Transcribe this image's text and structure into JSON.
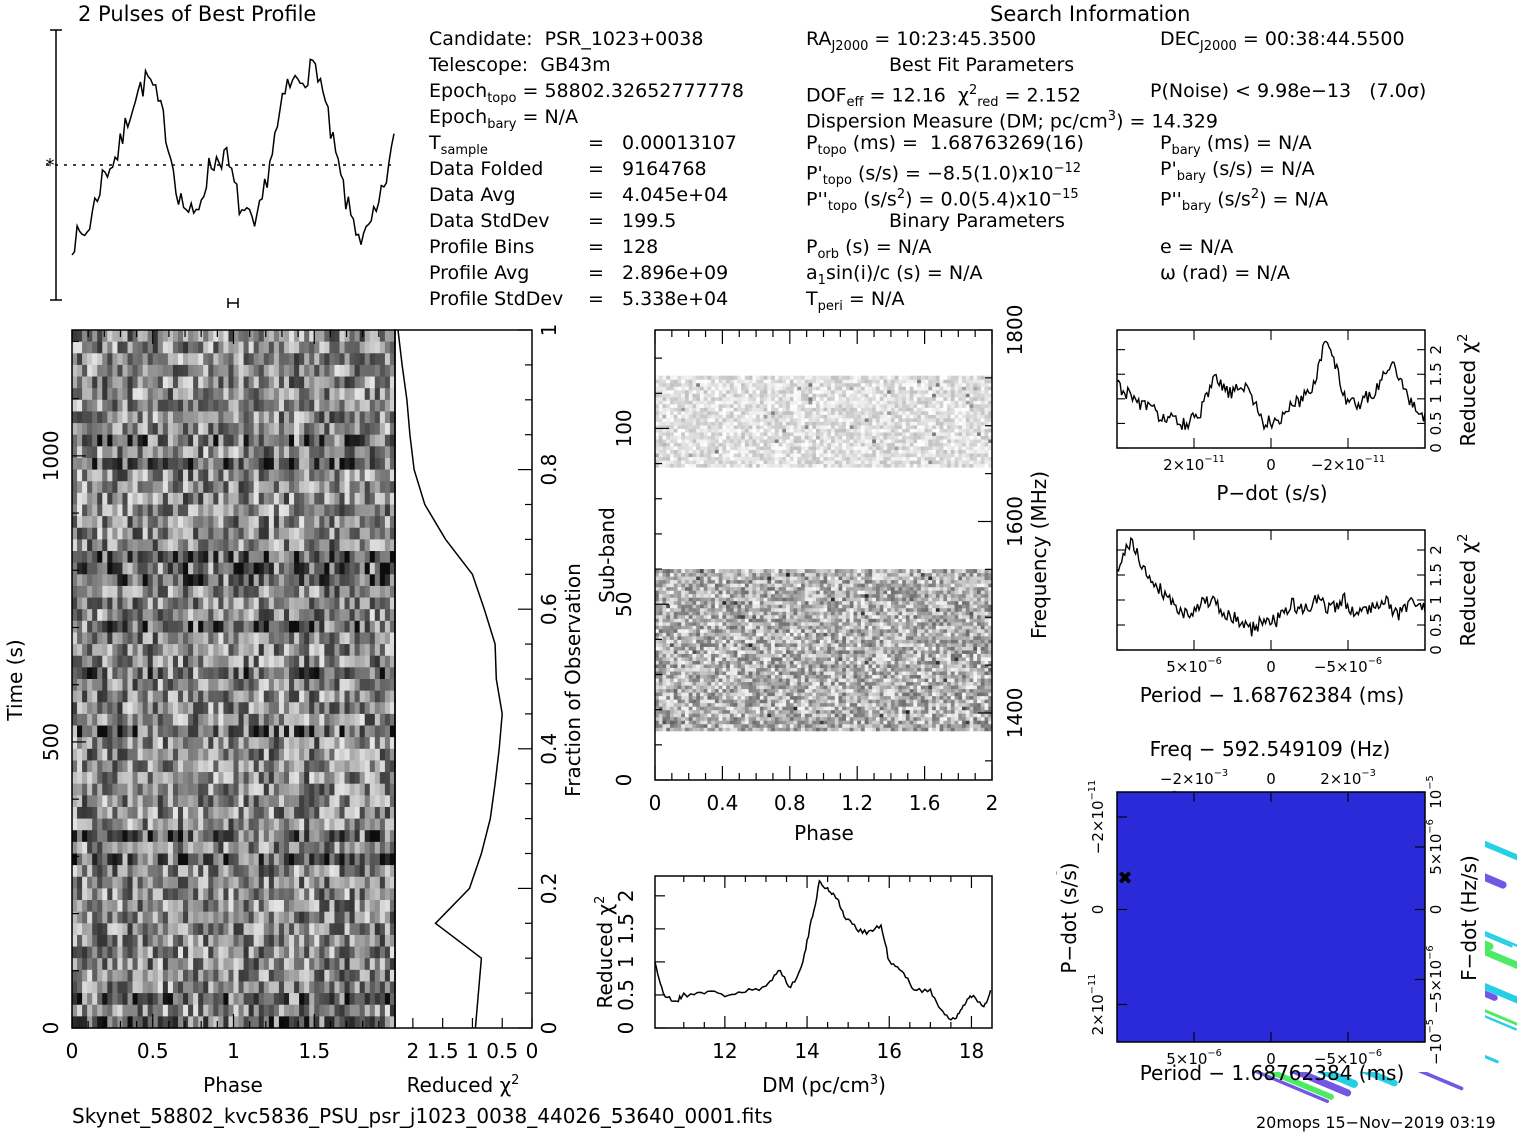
{
  "profile": {
    "title": "2 Pulses of Best Profile"
  },
  "search": {
    "title": "Search Information",
    "candidate": "Candidate:  PSR_1023+0038",
    "telescope": "Telescope:  GB43m",
    "epoch_topo": "Epoch",
    "epoch_topo_sub": "topo",
    "epoch_topo_val": " = 58802.32652777778",
    "epoch_bary": "Epoch",
    "epoch_bary_sub": "bary",
    "epoch_bary_val": " = N/A",
    "rows": [
      {
        "label": "T",
        "sub": "sample",
        "eq": "=",
        "value": "0.00013107"
      },
      {
        "label": "Data Folded",
        "sub": "",
        "eq": "=",
        "value": "9164768"
      },
      {
        "label": "Data Avg",
        "sub": "",
        "eq": "=",
        "value": "4.045e+04"
      },
      {
        "label": "Data StdDev",
        "sub": "",
        "eq": "=",
        "value": "199.5"
      },
      {
        "label": "Profile Bins",
        "sub": "",
        "eq": "=",
        "value": "128"
      },
      {
        "label": "Profile Avg",
        "sub": "",
        "eq": "=",
        "value": "2.896e+09"
      },
      {
        "label": "Profile StdDev",
        "sub": "",
        "eq": "=",
        "value": "5.338e+04"
      }
    ],
    "ra": "RA",
    "ra_sub": "J2000",
    "ra_val": " = 10:23:45.3500",
    "dec": "DEC",
    "dec_sub": "J2000",
    "dec_val": " = 00:38:44.5500",
    "best_fit_title": "Best Fit Parameters",
    "dof": "DOF",
    "dof_sub": "eff",
    "dof_val": " = 12.16",
    "chi": "  χ",
    "chi_sup": "2",
    "chi_sub": "red",
    "chi_val": " = 2.152",
    "pnoise": "P(Noise) < 9.98e−13   (7.0σ)",
    "dm_line": "Dispersion Measure (DM; pc/cm",
    "dm_sup": "3",
    "dm_val": ") = 14.329",
    "ptopo": "P",
    "ptopo_sub": "topo",
    "ptopo_val": " (ms) =  1.68763269(16)",
    "pbary": "P",
    "pbary_sub": "bary",
    "pbary_val": " (ms) = N/A",
    "pdtopo": "P'",
    "pdtopo_sub": "topo",
    "pdtopo_val": " (s/s) = −8.5(1.0)x10",
    "pdtopo_sup": "−12",
    "pdbary": "P'",
    "pdbary_sub": "bary",
    "pdbary_val": " (s/s) = N/A",
    "pddtopo": "P''",
    "pddtopo_sub": "topo",
    "pddtopo_val": " (s/s",
    "pddtopo_sup1": "2",
    "pddtopo_val2": ") = 0.0(5.4)x10",
    "pddtopo_sup2": "−15",
    "pddbary": "P''",
    "pddbary_sub": "bary",
    "pddbary_val": " (s/s",
    "pddbary_sup": "2",
    "pddbary_val2": ") = N/A",
    "binary_title": "Binary Parameters",
    "porb": "P",
    "porb_sub": "orb",
    "porb_val": " (s) = N/A",
    "ecc": "e = N/A",
    "a1": "a",
    "a1_sub": "1",
    "a1_val": "sin(i)/c (s) = N/A",
    "omega": "ω (rad) = N/A",
    "tperi": "T",
    "tperi_sub": "peri",
    "tperi_val": " = N/A"
  },
  "footer": {
    "filename": "Skynet_58802_kvc5836_PSU_psr_j1023_0038_44026_53640_0001.fits",
    "stamp": "20mops 15−Nov−2019 03:19"
  },
  "colors": {
    "ink": "#000000",
    "contour_low": "#2a2ad8",
    "contour_mid": "#00c8e0",
    "contour_high": "#2ee84a",
    "contour_peak": "#e8e000"
  },
  "chart_data": [
    {
      "id": "time-phase",
      "type": "heatmap",
      "xlabel": "Phase",
      "ylabel": "Time (s)",
      "xticks": [
        "0",
        "0.5",
        "1",
        "1.5"
      ],
      "yticks": [
        "0",
        "500",
        "1000"
      ],
      "xlim": [
        0,
        2
      ],
      "ylim": [
        0,
        1220
      ]
    },
    {
      "id": "time-chi",
      "type": "line",
      "xlabel": "Reduced χ",
      "xlabel_sup": "2",
      "ylabel": "Fraction of Observation",
      "xticks": [
        "2",
        "1.5",
        "1",
        "0.5",
        "0"
      ],
      "yticks": [
        "0",
        "0.2",
        "0.4",
        "0.6",
        "0.8",
        "1"
      ],
      "y": [
        0.0,
        0.05,
        0.1,
        0.15,
        0.2,
        0.25,
        0.3,
        0.35,
        0.4,
        0.45,
        0.5,
        0.55,
        0.6,
        0.65,
        0.7,
        0.75,
        0.8,
        0.85,
        0.9,
        0.95,
        1.0
      ],
      "x": [
        0.95,
        0.9,
        0.85,
        1.62,
        1.05,
        0.85,
        0.7,
        0.62,
        0.55,
        0.5,
        0.6,
        0.62,
        0.8,
        1.0,
        1.45,
        1.8,
        1.98,
        2.05,
        2.1,
        2.18,
        2.25
      ]
    },
    {
      "id": "subband-phase",
      "type": "heatmap",
      "xlabel": "Phase",
      "ylabel": "Sub-band",
      "y2label": "Frequency (MHz)",
      "xticks": [
        "0",
        "0.4",
        "0.8",
        "1.2",
        "1.6",
        "2"
      ],
      "yticks": [
        "0",
        "50",
        "100"
      ],
      "y2ticks": [
        "1400",
        "1600",
        "1800"
      ],
      "xlim": [
        0,
        2
      ],
      "ylim": [
        0,
        128
      ]
    },
    {
      "id": "dm-chi",
      "type": "line",
      "xlabel": "DM (pc/cm",
      "xlabel_sup": "3",
      "xlabel_end": ")",
      "ylabel": "Reduced χ",
      "ylabel_sup": "2",
      "xticks": [
        "12",
        "14",
        "16",
        "18"
      ],
      "yticks": [
        "0",
        "0.5",
        "1",
        "1.5",
        "2"
      ],
      "xlim": [
        10.3,
        18.5
      ],
      "ylim": [
        0,
        2.3
      ],
      "x": [
        10.3,
        10.5,
        10.8,
        11.0,
        11.5,
        12.0,
        12.5,
        13.0,
        13.3,
        13.6,
        13.9,
        14.1,
        14.3,
        14.5,
        14.7,
        14.9,
        15.2,
        15.5,
        15.8,
        16.0,
        16.3,
        16.6,
        17.0,
        17.3,
        17.6,
        17.8,
        18.0,
        18.3,
        18.5
      ],
      "y": [
        1.0,
        0.5,
        0.4,
        0.5,
        0.55,
        0.5,
        0.55,
        0.6,
        0.9,
        0.6,
        1.0,
        1.6,
        2.2,
        2.1,
        2.0,
        1.7,
        1.5,
        1.45,
        1.55,
        1.0,
        0.85,
        0.6,
        0.55,
        0.25,
        0.1,
        0.35,
        0.5,
        0.3,
        0.6
      ]
    },
    {
      "id": "pdot-chi",
      "type": "line",
      "xlabel": "P−dot (s/s)",
      "ylabel": "Reduced χ",
      "ylabel_sup": "2",
      "xticks": [
        "2×10",
        "0",
        "−2×10"
      ],
      "xtick_sup": "−11",
      "yticks": [
        "0",
        "0.5",
        "1",
        "1.5",
        "2"
      ],
      "xlim": [
        2.9e-11,
        -2.9e-11
      ],
      "ylim": [
        0,
        2.4
      ],
      "x": [
        2.9e-11,
        2.6e-11,
        2.3e-11,
        2e-11,
        1.7e-11,
        1.4e-11,
        1.1e-11,
        8e-12,
        5e-12,
        2e-12,
        -1e-12,
        -4e-12,
        -7e-12,
        -1e-11,
        -1.3e-11,
        -1.6e-11,
        -1.9e-11,
        -2.2e-11,
        -2.5e-11,
        -2.9e-11
      ],
      "y": [
        1.3,
        1.0,
        0.8,
        0.6,
        0.5,
        0.6,
        1.4,
        1.1,
        1.3,
        0.5,
        0.6,
        0.9,
        1.2,
        2.3,
        1.0,
        0.9,
        1.2,
        1.8,
        1.0,
        0.6
      ]
    },
    {
      "id": "period-chi",
      "type": "line",
      "xlabel": "Period − 1.68762384 (ms)",
      "ylabel": "Reduced χ",
      "ylabel_sup": "2",
      "xticks": [
        "5×10",
        "0",
        "−5×10"
      ],
      "xtick_sup": "−6",
      "yticks": [
        "0",
        "0.5",
        "1",
        "1.5",
        "2"
      ],
      "xlim": [
        9e-06,
        -9e-06
      ],
      "ylim": [
        0,
        2.4
      ],
      "x": [
        9e-06,
        8.4e-06,
        7.6e-06,
        6.8e-06,
        6e-06,
        5.2e-06,
        4.4e-06,
        3.6e-06,
        2.8e-06,
        2e-06,
        1.2e-06,
        4e-07,
        -4e-07,
        -1.2e-06,
        -2e-06,
        -2.8e-06,
        -3.6e-06,
        -4.4e-06,
        -5.2e-06,
        -6e-06,
        -6.8e-06,
        -7.6e-06,
        -8.4e-06,
        -9e-06
      ],
      "y": [
        1.5,
        2.2,
        1.6,
        1.3,
        1.0,
        0.7,
        0.9,
        1.0,
        0.7,
        0.6,
        0.4,
        0.6,
        0.6,
        0.9,
        0.8,
        1.0,
        0.8,
        1.0,
        0.7,
        0.9,
        1.0,
        0.7,
        1.0,
        0.8
      ]
    },
    {
      "id": "pp-contour",
      "type": "heatmap",
      "title": "Freq − 592.549109 (Hz)",
      "xlabel": "Period − 1.68762384 (ms)",
      "ylabel": "P−dot (s/s)",
      "y2label": "F−dot (Hz/s)",
      "xticks": [
        "5×10",
        "0",
        "−5×10"
      ],
      "xtick_sup": "−6",
      "topticks": [
        "−2×10",
        "0",
        "2×10"
      ],
      "toptick_sup": "−3",
      "yticks": [
        "2×10",
        "0",
        "−2×10"
      ],
      "ytick_sup": "−11",
      "y2ticks": [
        "−10",
        "−5×10",
        "0",
        "5×10",
        "10"
      ],
      "y2tick_sup": [
        "−5",
        "−6",
        "",
        "−6",
        "−5"
      ]
    }
  ]
}
